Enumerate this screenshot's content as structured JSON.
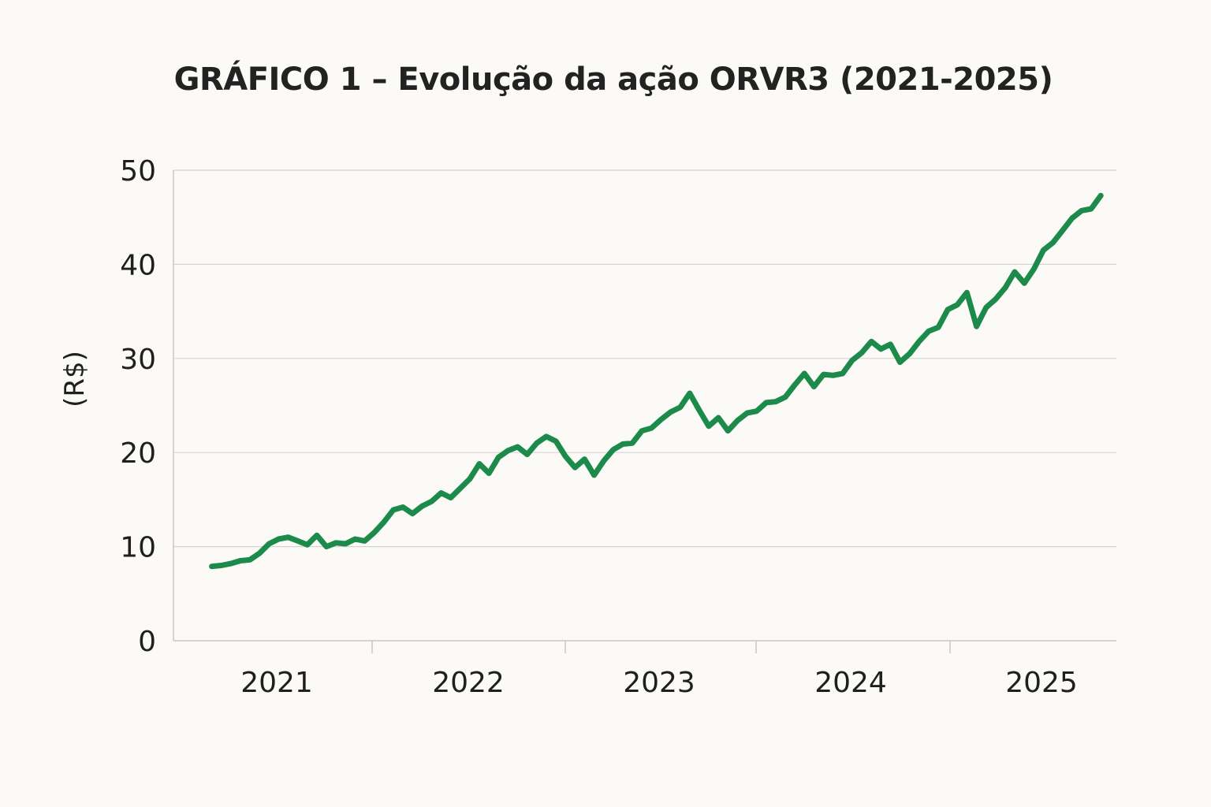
{
  "chart_data": {
    "type": "line",
    "title": "GRÁFICO 1 – Evolução da ação ORVR3 (2021-2025)",
    "xlabel": "",
    "ylabel": "(R$)",
    "ylim": [
      0,
      50
    ],
    "yticks": [
      "0",
      "10",
      "20",
      "30",
      "40",
      "50"
    ],
    "xticks": [
      "2021",
      "2022",
      "2023",
      "2024",
      "2025"
    ],
    "grid": true,
    "legend": false,
    "colors": {
      "line": "#1c8a4b",
      "grid": "#d4d4d4",
      "axis": "#c8c8c8"
    },
    "series": [
      {
        "x": [
          2020.66,
          2020.71,
          2020.76,
          2020.81,
          2020.86,
          2020.91,
          2020.96,
          2021.01,
          2021.06,
          2021.11,
          2021.16,
          2021.21,
          2021.26,
          2021.31,
          2021.36,
          2021.41,
          2021.46,
          2021.51,
          2021.56,
          2021.61,
          2021.66,
          2021.71,
          2021.76,
          2021.81,
          2021.86,
          2021.91,
          2021.96,
          2022.01,
          2022.06,
          2022.11,
          2022.16,
          2022.21,
          2022.26,
          2022.31,
          2022.36,
          2022.41,
          2022.46,
          2022.51,
          2022.56,
          2022.61,
          2022.66,
          2022.71,
          2022.76,
          2022.81,
          2022.86,
          2022.91,
          2022.96,
          2023.01,
          2023.06,
          2023.11,
          2023.16,
          2023.21,
          2023.26,
          2023.31,
          2023.36,
          2023.41,
          2023.46,
          2023.51,
          2023.56,
          2023.61,
          2023.66,
          2023.71,
          2023.76,
          2023.81,
          2023.86,
          2023.91,
          2023.96,
          2024.01,
          2024.06,
          2024.11,
          2024.16,
          2024.21,
          2024.26,
          2024.31,
          2024.36,
          2024.41,
          2024.46,
          2024.51,
          2024.56,
          2024.61,
          2024.66,
          2024.71,
          2024.76,
          2024.81,
          2024.86,
          2024.91,
          2024.96,
          2025.01,
          2025.06,
          2025.11,
          2025.16,
          2025.21,
          2025.26,
          2025.31
        ],
        "y": [
          7.9,
          8.0,
          8.2,
          8.5,
          8.6,
          9.3,
          10.3,
          10.8,
          11.0,
          10.6,
          10.2,
          11.2,
          10.0,
          10.4,
          10.3,
          10.8,
          10.6,
          11.5,
          12.6,
          13.9,
          14.2,
          13.5,
          14.3,
          14.8,
          15.7,
          15.2,
          16.2,
          17.2,
          18.8,
          17.8,
          19.5,
          20.2,
          20.6,
          19.8,
          21.0,
          21.7,
          21.2,
          19.6,
          18.4,
          19.3,
          17.6,
          19.1,
          20.3,
          20.9,
          21.0,
          22.3,
          22.6,
          23.5,
          24.3,
          24.8,
          26.3,
          24.5,
          22.8,
          23.7,
          22.3,
          23.4,
          24.2,
          24.4,
          25.3,
          25.4,
          25.9,
          27.2,
          28.4,
          27.0,
          28.3,
          28.2,
          28.4,
          29.8,
          30.6,
          31.8,
          31.0,
          31.5,
          29.6,
          30.5,
          31.8,
          32.9,
          33.3,
          35.2,
          35.7,
          37.0,
          33.4,
          35.4,
          36.3,
          37.5,
          39.2,
          38.0,
          39.5,
          41.5,
          42.3,
          43.6,
          44.9,
          45.7,
          45.9,
          47.3
        ]
      }
    ]
  }
}
